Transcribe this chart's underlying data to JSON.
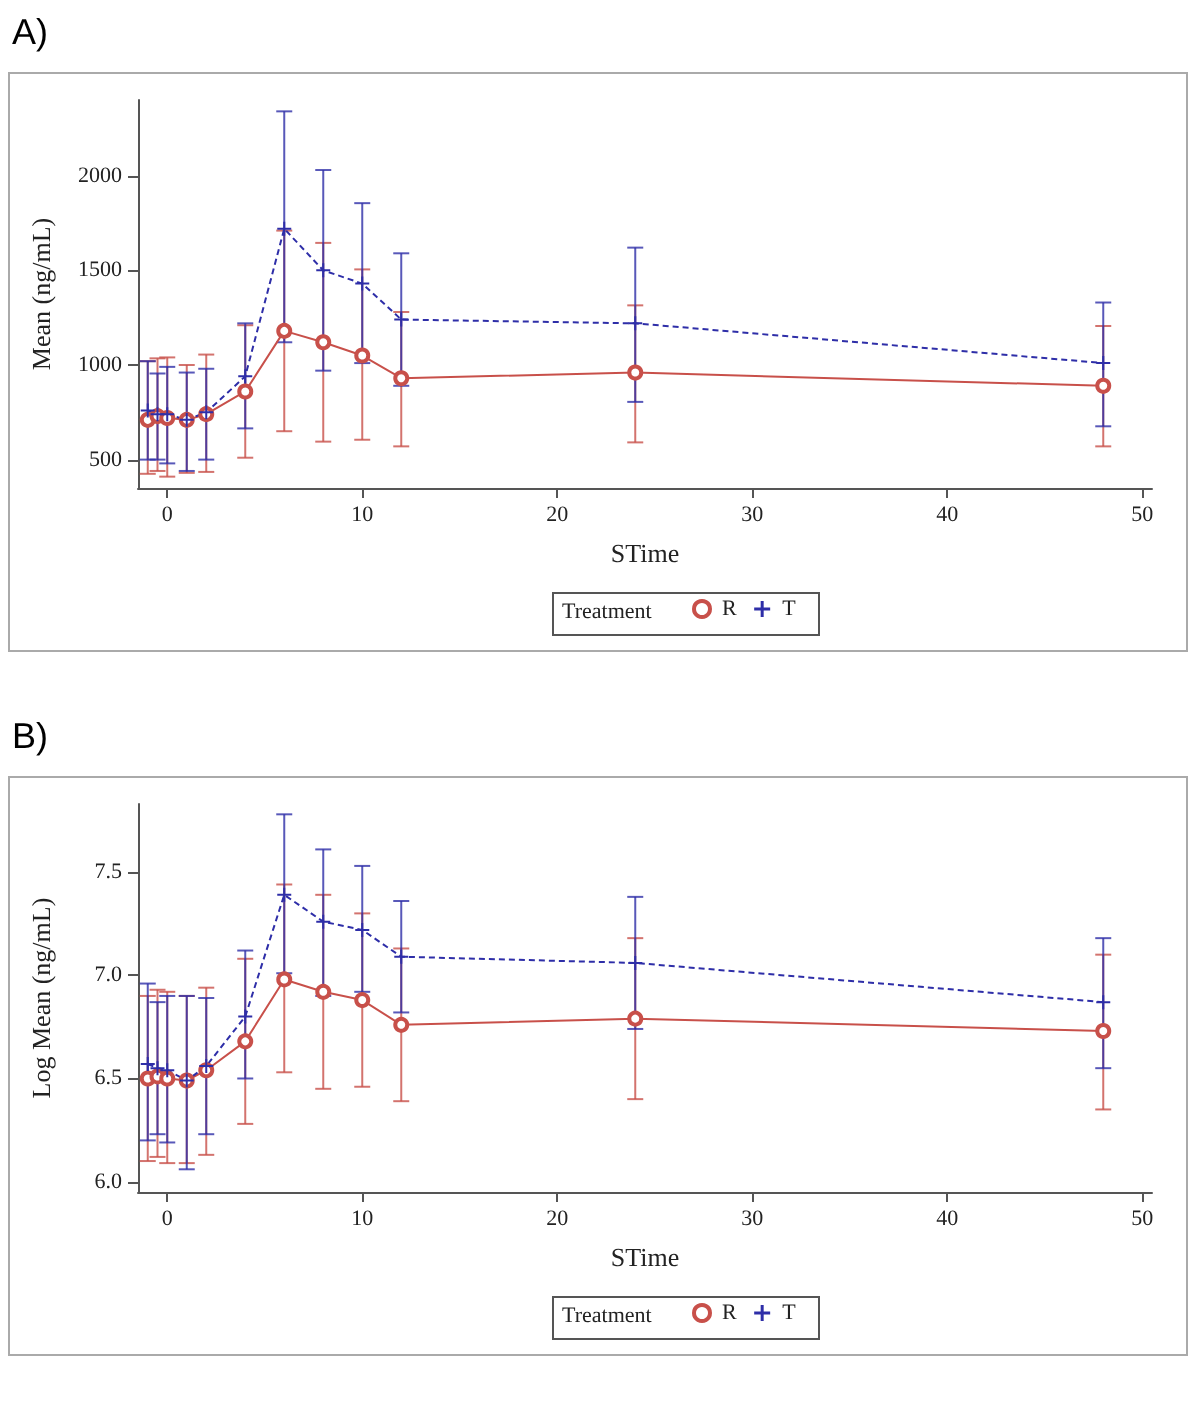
{
  "chart_data": [
    {
      "type": "line",
      "title": "A)",
      "xlabel": "STime",
      "ylabel": "Mean (ng/mL)",
      "legend_title": "Treatment",
      "legend": "bottom",
      "grid": false,
      "xlim": [
        -1.5,
        50.5
      ],
      "xticks": [
        0,
        10,
        20,
        30,
        40,
        50
      ],
      "ylim": [
        350,
        2400
      ],
      "yticks": [
        500,
        1000,
        1500,
        2000
      ],
      "series": [
        {
          "name": "R",
          "color": "#c8504a",
          "marker": "circle",
          "line_style": "solid",
          "x": [
            -1,
            -0.5,
            0,
            1,
            2,
            4,
            6,
            8,
            10,
            12,
            24,
            48
          ],
          "values": [
            710,
            730,
            720,
            710,
            740,
            860,
            1180,
            1120,
            1050,
            930,
            960,
            890
          ],
          "errors": [
            [
              425,
              1020
            ],
            [
              440,
              1035
            ],
            [
              410,
              1040
            ],
            [
              430,
              1000
            ],
            [
              435,
              1055
            ],
            [
              510,
              1210
            ],
            [
              650,
              1710
            ],
            [
              595,
              1645
            ],
            [
              605,
              1505
            ],
            [
              570,
              1280
            ],
            [
              591,
              1315
            ],
            [
              570,
              1206
            ]
          ]
        },
        {
          "name": "T",
          "color": "#2e2ea8",
          "marker": "cross",
          "line_style": "dashed",
          "x": [
            -1,
            -0.5,
            0,
            1,
            2,
            4,
            6,
            8,
            10,
            12,
            24,
            48
          ],
          "values": [
            760,
            740,
            740,
            710,
            750,
            940,
            1720,
            1500,
            1430,
            1240,
            1220,
            1010
          ],
          "errors": [
            [
              500,
              1020
            ],
            [
              500,
              955
            ],
            [
              480,
              990
            ],
            [
              440,
              960
            ],
            [
              500,
              980
            ],
            [
              665,
              1220
            ],
            [
              1120,
              2340
            ],
            [
              970,
              2030
            ],
            [
              1010,
              1855
            ],
            [
              890,
              1590
            ],
            [
              805,
              1620
            ],
            [
              676,
              1330
            ]
          ]
        }
      ]
    },
    {
      "type": "line",
      "title": "B)",
      "xlabel": "STime",
      "ylabel": "Log Mean (ng/mL)",
      "legend_title": "Treatment",
      "legend": "bottom",
      "grid": false,
      "xlim": [
        -1.5,
        50.5
      ],
      "xticks": [
        0,
        10,
        20,
        30,
        40,
        50
      ],
      "ylim": [
        5.95,
        7.83
      ],
      "yticks": [
        {
          "value": 6,
          "label": "6.0"
        },
        6.5,
        {
          "value": 7,
          "label": "7.0"
        },
        7.5
      ],
      "series": [
        {
          "name": "R",
          "color": "#c8504a",
          "marker": "circle",
          "line_style": "solid",
          "x": [
            -1,
            -0.5,
            0,
            1,
            2,
            4,
            6,
            8,
            10,
            12,
            24,
            48
          ],
          "values": [
            6.5,
            6.51,
            6.5,
            6.49,
            6.54,
            6.68,
            6.98,
            6.92,
            6.88,
            6.76,
            6.79,
            6.73
          ],
          "errors": [
            [
              6.1,
              6.9
            ],
            [
              6.12,
              6.93
            ],
            [
              6.09,
              6.92
            ],
            [
              6.09,
              6.9
            ],
            [
              6.13,
              6.94
            ],
            [
              6.28,
              7.08
            ],
            [
              6.53,
              7.44
            ],
            [
              6.45,
              7.39
            ],
            [
              6.46,
              7.3
            ],
            [
              6.39,
              7.13
            ],
            [
              6.4,
              7.18
            ],
            [
              6.35,
              7.1
            ]
          ]
        },
        {
          "name": "T",
          "color": "#2e2ea8",
          "marker": "cross",
          "line_style": "dashed",
          "x": [
            -1,
            -0.5,
            0,
            1,
            2,
            4,
            6,
            8,
            10,
            12,
            24,
            48
          ],
          "values": [
            6.57,
            6.55,
            6.54,
            6.49,
            6.56,
            6.8,
            7.39,
            7.26,
            7.22,
            7.09,
            7.06,
            6.87
          ],
          "errors": [
            [
              6.2,
              6.96
            ],
            [
              6.23,
              6.87
            ],
            [
              6.19,
              6.9
            ],
            [
              6.06,
              6.9
            ],
            [
              6.23,
              6.89
            ],
            [
              6.5,
              7.12
            ],
            [
              7.01,
              7.78
            ],
            [
              6.9,
              7.61
            ],
            [
              6.92,
              7.53
            ],
            [
              6.82,
              7.36
            ],
            [
              6.74,
              7.38
            ],
            [
              6.55,
              7.18
            ]
          ]
        }
      ]
    }
  ]
}
